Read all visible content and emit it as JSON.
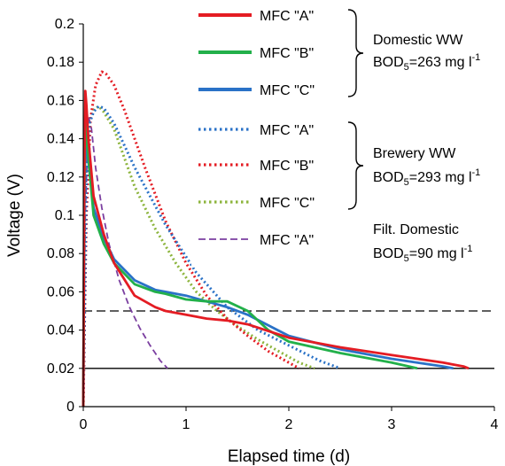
{
  "chart_data": {
    "type": "line",
    "xlabel": "Elapsed time (d)",
    "ylabel": "Voltage (V)",
    "xlim": [
      0,
      4
    ],
    "ylim": [
      0,
      0.2
    ],
    "x_ticks": [
      "0",
      "1",
      "2",
      "3",
      "4"
    ],
    "y_ticks": [
      "0",
      "0.02",
      "0.04",
      "0.06",
      "0.08",
      "0.1",
      "0.12",
      "0.14",
      "0.16",
      "0.18",
      "0.2"
    ],
    "grid": false,
    "legend_position": "top-right",
    "reference_lines": [
      {
        "y": 0.05,
        "style": "dashed",
        "color": "#000000"
      },
      {
        "y": 0.02,
        "style": "solid",
        "color": "#000000"
      }
    ],
    "groups": [
      {
        "label": "Domestic WW",
        "bod_prefix": "BOD",
        "bod_sub": "5",
        "bod_value": "=263 mg l",
        "bod_sup": "-1"
      },
      {
        "label": "Brewery WW",
        "bod_prefix": "BOD",
        "bod_sub": "5",
        "bod_value": "=293 mg l",
        "bod_sup": "-1"
      },
      {
        "label": "Filt. Domestic",
        "bod_prefix": "BOD",
        "bod_sub": "5",
        "bod_value": "=90 mg l",
        "bod_sup": "-1"
      }
    ],
    "series": [
      {
        "name": "MFC \"A\"",
        "group": "Domestic WW",
        "color": "#e41c23",
        "style": "solid",
        "x": [
          0,
          0.01,
          0.02,
          0.03,
          0.05,
          0.1,
          0.2,
          0.3,
          0.5,
          0.7,
          0.8,
          1.0,
          1.2,
          1.4,
          1.6,
          2.0,
          2.5,
          3.0,
          3.5,
          3.7,
          3.75
        ],
        "y": [
          0.0,
          0.12,
          0.165,
          0.158,
          0.14,
          0.11,
          0.09,
          0.075,
          0.058,
          0.052,
          0.05,
          0.048,
          0.046,
          0.045,
          0.043,
          0.036,
          0.031,
          0.027,
          0.023,
          0.021,
          0.02
        ]
      },
      {
        "name": "MFC \"B\"",
        "group": "Domestic WW",
        "color": "#22b04a",
        "style": "solid",
        "x": [
          0,
          0.01,
          0.02,
          0.03,
          0.05,
          0.1,
          0.2,
          0.3,
          0.5,
          0.7,
          0.8,
          1.0,
          1.2,
          1.4,
          1.6,
          1.8,
          2.0,
          2.5,
          3.0,
          3.25
        ],
        "y": [
          0.0,
          0.11,
          0.152,
          0.145,
          0.13,
          0.1,
          0.085,
          0.075,
          0.064,
          0.06,
          0.059,
          0.056,
          0.055,
          0.055,
          0.05,
          0.04,
          0.034,
          0.028,
          0.023,
          0.02
        ]
      },
      {
        "name": "MFC \"C\"",
        "group": "Domestic WW",
        "color": "#2a72c7",
        "style": "solid",
        "x": [
          0,
          0.01,
          0.02,
          0.03,
          0.05,
          0.1,
          0.2,
          0.3,
          0.5,
          0.7,
          0.8,
          1.0,
          1.2,
          1.4,
          1.6,
          2.0,
          2.5,
          3.0,
          3.5,
          3.6
        ],
        "y": [
          0.0,
          0.1,
          0.14,
          0.135,
          0.128,
          0.104,
          0.088,
          0.077,
          0.066,
          0.061,
          0.06,
          0.058,
          0.055,
          0.052,
          0.048,
          0.037,
          0.03,
          0.025,
          0.021,
          0.02
        ]
      },
      {
        "name": "MFC \"A\"",
        "group": "Brewery WW",
        "color": "#2a72c7",
        "style": "dotted",
        "x": [
          0,
          0.03,
          0.06,
          0.1,
          0.15,
          0.2,
          0.3,
          0.5,
          0.8,
          1.1,
          1.4,
          1.7,
          2.0,
          2.3,
          2.5
        ],
        "y": [
          0.0,
          0.12,
          0.148,
          0.154,
          0.157,
          0.156,
          0.148,
          0.125,
          0.095,
          0.07,
          0.052,
          0.04,
          0.032,
          0.024,
          0.02
        ]
      },
      {
        "name": "MFC \"B\"",
        "group": "Brewery WW",
        "color": "#e41c23",
        "style": "dotted",
        "x": [
          0,
          0.03,
          0.07,
          0.12,
          0.18,
          0.22,
          0.3,
          0.4,
          0.6,
          0.8,
          1.0,
          1.2,
          1.4,
          1.6,
          1.8,
          2.0,
          2.1
        ],
        "y": [
          0.0,
          0.1,
          0.15,
          0.168,
          0.175,
          0.174,
          0.168,
          0.155,
          0.125,
          0.097,
          0.075,
          0.058,
          0.046,
          0.037,
          0.029,
          0.023,
          0.02
        ]
      },
      {
        "name": "MFC \"C\"",
        "group": "Brewery WW",
        "color": "#8cb43c",
        "style": "dotted",
        "x": [
          0,
          0.03,
          0.06,
          0.1,
          0.15,
          0.2,
          0.3,
          0.5,
          0.7,
          0.9,
          1.1,
          1.3,
          1.5,
          1.7,
          1.9,
          2.1,
          2.25
        ],
        "y": [
          0.0,
          0.12,
          0.148,
          0.155,
          0.157,
          0.154,
          0.145,
          0.115,
          0.093,
          0.075,
          0.06,
          0.05,
          0.042,
          0.035,
          0.029,
          0.023,
          0.02
        ]
      },
      {
        "name": "MFC \"A\"",
        "group": "Filt. Domestic",
        "color": "#7b3fa0",
        "style": "dashed",
        "x": [
          0,
          0.02,
          0.05,
          0.08,
          0.12,
          0.18,
          0.25,
          0.35,
          0.45,
          0.55,
          0.65,
          0.75,
          0.82
        ],
        "y": [
          0.0,
          0.1,
          0.152,
          0.145,
          0.125,
          0.104,
          0.085,
          0.066,
          0.052,
          0.041,
          0.032,
          0.024,
          0.02
        ]
      }
    ]
  }
}
